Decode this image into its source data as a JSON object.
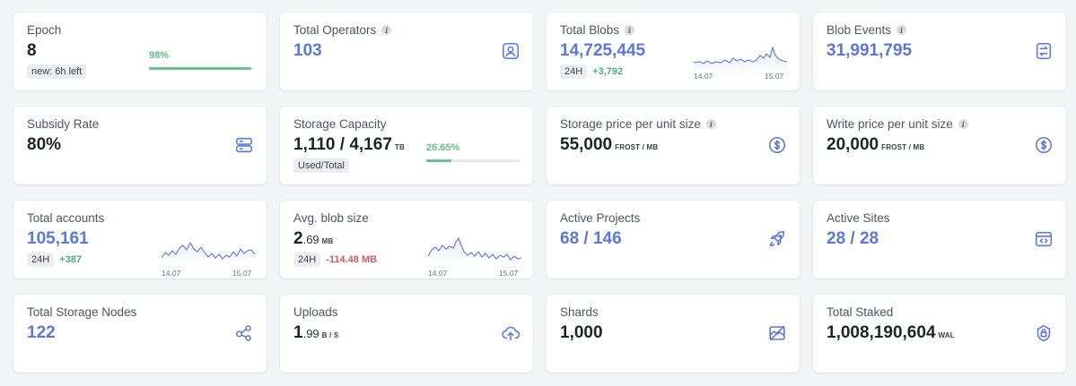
{
  "colors": {
    "accent": "#5b78d6",
    "positive": "#4cae7a",
    "negative": "#d05a5a",
    "progress": "#6cc28f"
  },
  "cards": {
    "epoch": {
      "label": "Epoch",
      "value": "8",
      "badge": "new: 6h left",
      "progress_label": "98%",
      "progress": 0.98
    },
    "total_operators": {
      "label": "Total Operators",
      "info": "i",
      "value": "103",
      "icon": "user-square-icon"
    },
    "total_blobs": {
      "label": "Total Blobs",
      "info": "i",
      "value": "14,725,445",
      "period": "24H",
      "change": "+3,792",
      "chart_start": "14.07",
      "chart_end": "15.07"
    },
    "blob_events": {
      "label": "Blob Events",
      "info": "i",
      "value": "31,991,795",
      "icon": "document-exchange-icon"
    },
    "subsidy_rate": {
      "label": "Subsidy Rate",
      "value": "80%",
      "icon": "server-icon"
    },
    "storage_capacity": {
      "label": "Storage Capacity",
      "value": "1,110 / 4,167",
      "unit": "TB",
      "badge": "Used/Total",
      "progress_label": "26.65%",
      "progress": 0.2665
    },
    "storage_price": {
      "label": "Storage price per unit size",
      "info": "i",
      "value": "55,000",
      "unit": "FROST / MB",
      "icon": "dollar-circle-icon"
    },
    "write_price": {
      "label": "Write price per unit size",
      "info": "i",
      "value": "20,000",
      "unit": "FROST / MB",
      "icon": "dollar-circle-icon"
    },
    "total_accounts": {
      "label": "Total accounts",
      "value": "105,161",
      "period": "24H",
      "change": "+387",
      "chart_start": "14.07",
      "chart_end": "15.07"
    },
    "avg_blob_size": {
      "label": "Avg. blob size",
      "value_int": "2",
      "value_dec": ".69",
      "unit": "MB",
      "period": "24H",
      "change": "-114.48 MB",
      "chart_start": "14.07",
      "chart_end": "15.07"
    },
    "active_projects": {
      "label": "Active Projects",
      "value": "68 / 146",
      "icon": "rocket-icon"
    },
    "active_sites": {
      "label": "Active Sites",
      "value": "28 / 28",
      "icon": "browser-code-icon"
    },
    "total_storage_nodes": {
      "label": "Total Storage Nodes",
      "value": "122",
      "icon": "nodes-icon"
    },
    "uploads": {
      "label": "Uploads",
      "value_int": "1",
      "value_dec": ".99",
      "unit": "B / S",
      "icon": "cloud-upload-icon"
    },
    "shards": {
      "label": "Shards",
      "value": "1,000",
      "icon": "shards-icon"
    },
    "total_staked": {
      "label": "Total Staked",
      "value": "1,008,190,604",
      "unit": "WAL",
      "icon": "lock-icon"
    }
  }
}
